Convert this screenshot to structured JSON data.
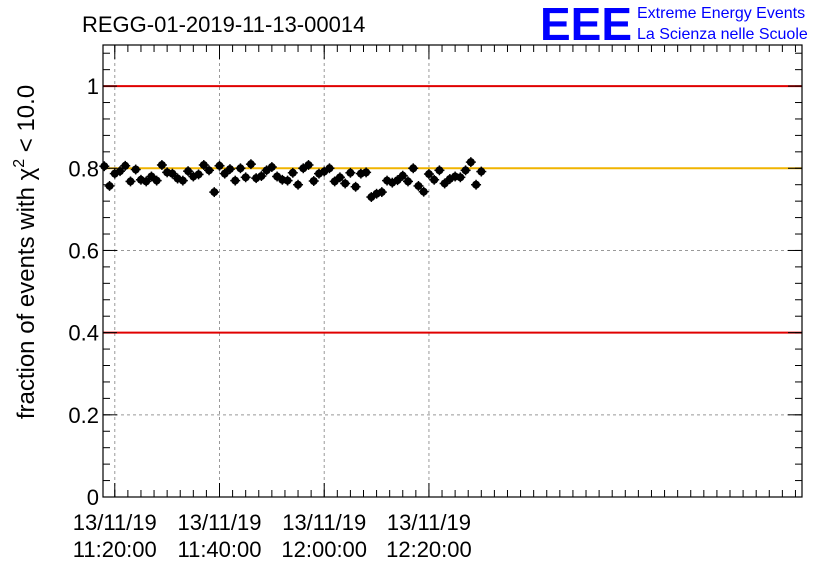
{
  "title": "REGG-01-2019-11-13-00014",
  "logo": {
    "mark": "EEE",
    "line1": "Extreme Energy Events",
    "line2": "La Scienza nelle Scuole",
    "color": "#0000ff"
  },
  "chart_data": {
    "type": "scatter",
    "title": "REGG-01-2019-11-13-00014",
    "ylabel_parts": {
      "before": "fraction of events with ",
      "symbol": "χ",
      "exp": "2",
      "after": " < 10.0"
    },
    "xlabel": "",
    "ylim": [
      0,
      1.1
    ],
    "yticks": [
      "0",
      "0.2",
      "0.4",
      "0.6",
      "0.8",
      "1"
    ],
    "ytick_values": [
      0,
      0.2,
      0.4,
      0.6,
      0.8,
      1.0
    ],
    "xlim_minutes": [
      1095.5,
      1362.5
    ],
    "xticks": [
      {
        "minutes": 1100,
        "date": "13/11/19",
        "time": "11:20:00"
      },
      {
        "minutes": 1140,
        "date": "13/11/19",
        "time": "11:40:00"
      },
      {
        "minutes": 1180,
        "date": "13/11/19",
        "time": "12:00:00"
      },
      {
        "minutes": 1220,
        "date": "13/11/19",
        "time": "12:20:00"
      }
    ],
    "grid": true,
    "reference_lines": [
      {
        "y": 1.0,
        "color": "#e00000"
      },
      {
        "y": 0.4,
        "color": "#e00000"
      },
      {
        "y": 0.8,
        "color": "#f0b400"
      }
    ],
    "marker_color": "#000000",
    "error": 0.012,
    "series": [
      {
        "x_start_minutes": 1096,
        "x_step_minutes": 2,
        "values": [
          0.805,
          0.757,
          0.787,
          0.793,
          0.806,
          0.768,
          0.797,
          0.772,
          0.768,
          0.78,
          0.77,
          0.808,
          0.79,
          0.787,
          0.775,
          0.77,
          0.793,
          0.78,
          0.785,
          0.808,
          0.795,
          0.742,
          0.806,
          0.787,
          0.798,
          0.77,
          0.8,
          0.778,
          0.81,
          0.776,
          0.781,
          0.795,
          0.803,
          0.78,
          0.772,
          0.77,
          0.789,
          0.76,
          0.8,
          0.808,
          0.769,
          0.787,
          0.792,
          0.8,
          0.768,
          0.778,
          0.763,
          0.789,
          0.755,
          0.787,
          0.79,
          0.73,
          0.738,
          0.742,
          0.77,
          0.765,
          0.771,
          0.782,
          0.768,
          0.8,
          0.757,
          0.743,
          0.786,
          0.772,
          0.795,
          0.763,
          0.774,
          0.78,
          0.778,
          0.795,
          0.815,
          0.76,
          0.792
        ]
      }
    ]
  }
}
